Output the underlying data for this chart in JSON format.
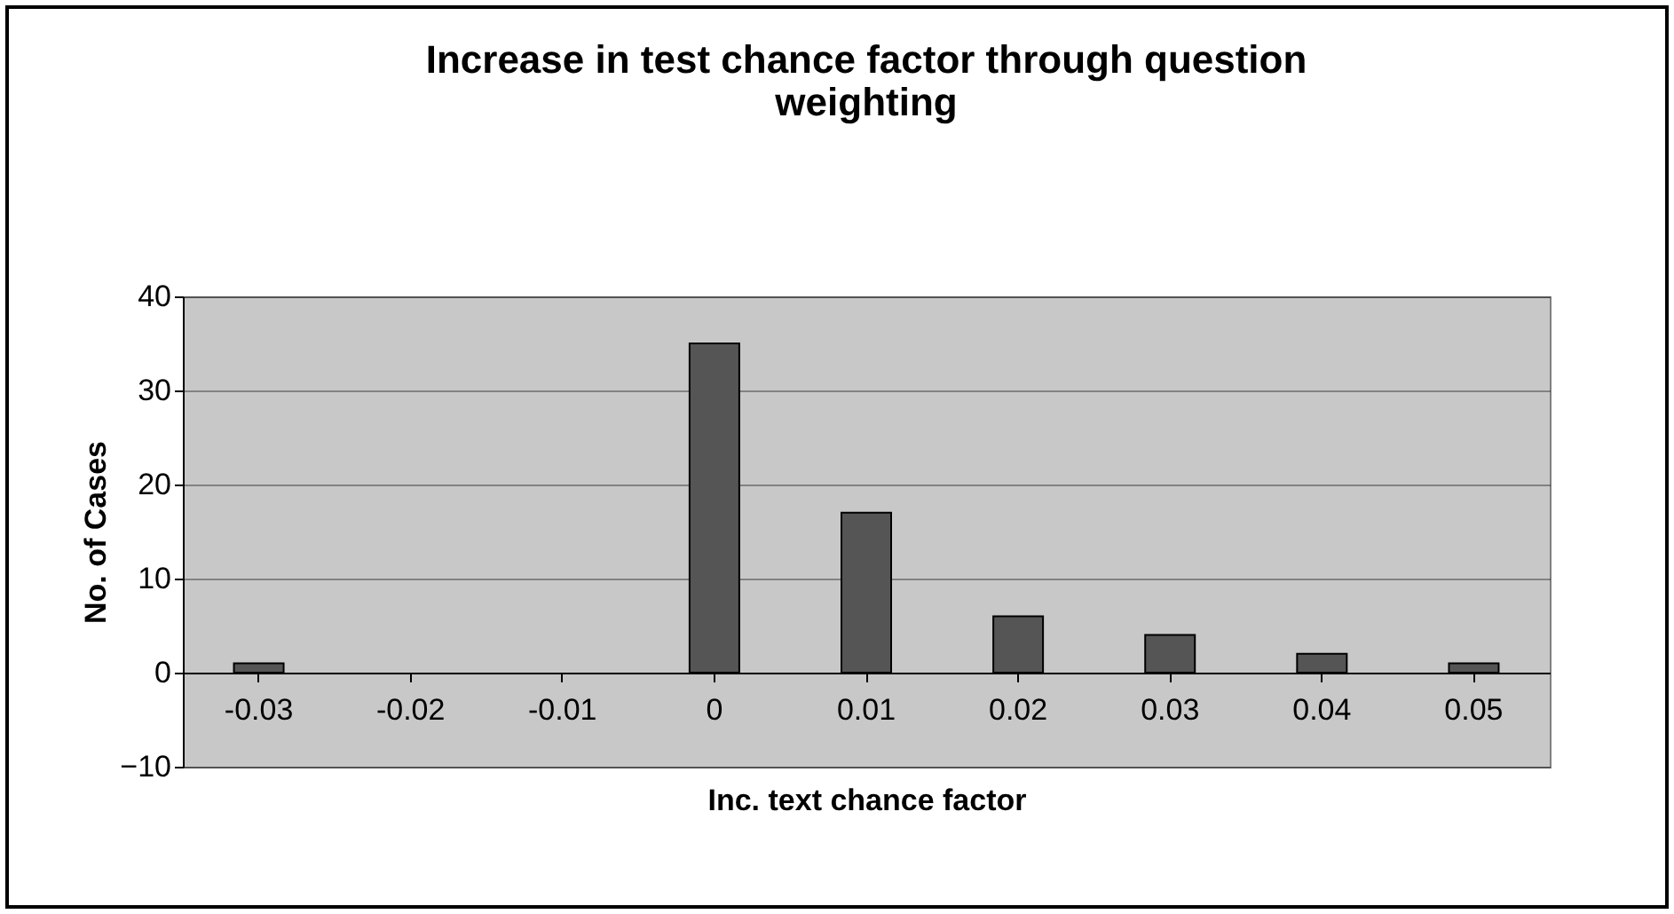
{
  "chart_data": {
    "type": "bar",
    "title": "Increase in test chance factor through question weighting",
    "xlabel": "Inc. text chance factor",
    "ylabel": "No. of Cases",
    "categories": [
      "-0.03",
      "-0.02",
      "-0.01",
      "0",
      "0.01",
      "0.02",
      "0.03",
      "0.04",
      "0.05"
    ],
    "values": [
      1,
      null,
      null,
      35,
      17,
      6,
      4,
      2,
      1
    ],
    "color": "#555555",
    "ylim": [
      -10,
      40
    ],
    "yticks": [
      -10,
      0,
      10,
      20,
      30,
      40
    ],
    "grid": "y"
  }
}
